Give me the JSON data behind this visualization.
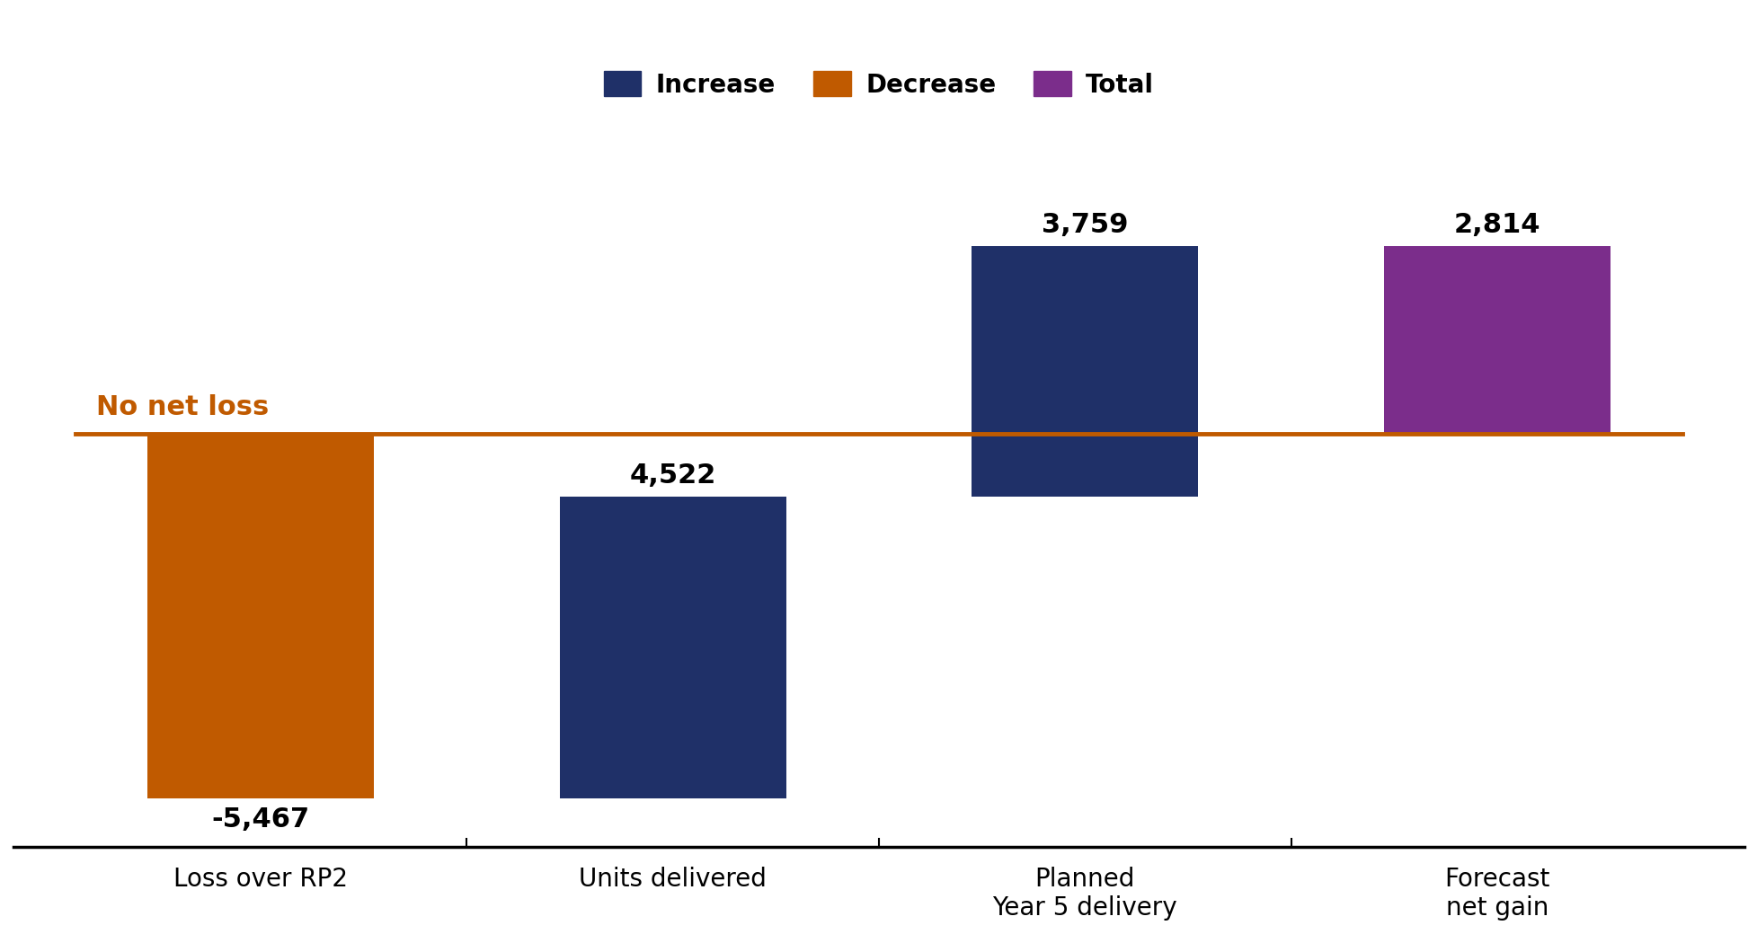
{
  "categories": [
    "Loss over RP2",
    "Units delivered",
    "Planned\nYear 5 delivery",
    "Forecast\nnet gain"
  ],
  "values": [
    -5467,
    4522,
    3759,
    2814
  ],
  "bar_type": [
    "decrease",
    "increase",
    "increase",
    "total"
  ],
  "colors": {
    "increase": "#1F3068",
    "decrease": "#C05A00",
    "total": "#7B2D8B"
  },
  "bar_labels": [
    "-5,467",
    "4,522",
    "3,759",
    "2,814"
  ],
  "no_net_loss_y": 0,
  "no_net_loss_label": "No net loss",
  "no_net_loss_color": "#C05A00",
  "legend_entries": [
    {
      "label": "Increase",
      "color": "#1F3068"
    },
    {
      "label": "Decrease",
      "color": "#C05A00"
    },
    {
      "label": "Total",
      "color": "#7B2D8B"
    }
  ],
  "ylim": [
    -6200,
    4500
  ],
  "xlim": [
    -0.6,
    3.6
  ],
  "background_color": "#ffffff",
  "bar_width": 0.55,
  "label_fontsize": 22,
  "tick_fontsize": 20,
  "legend_fontsize": 20,
  "no_net_loss_fontsize": 22
}
